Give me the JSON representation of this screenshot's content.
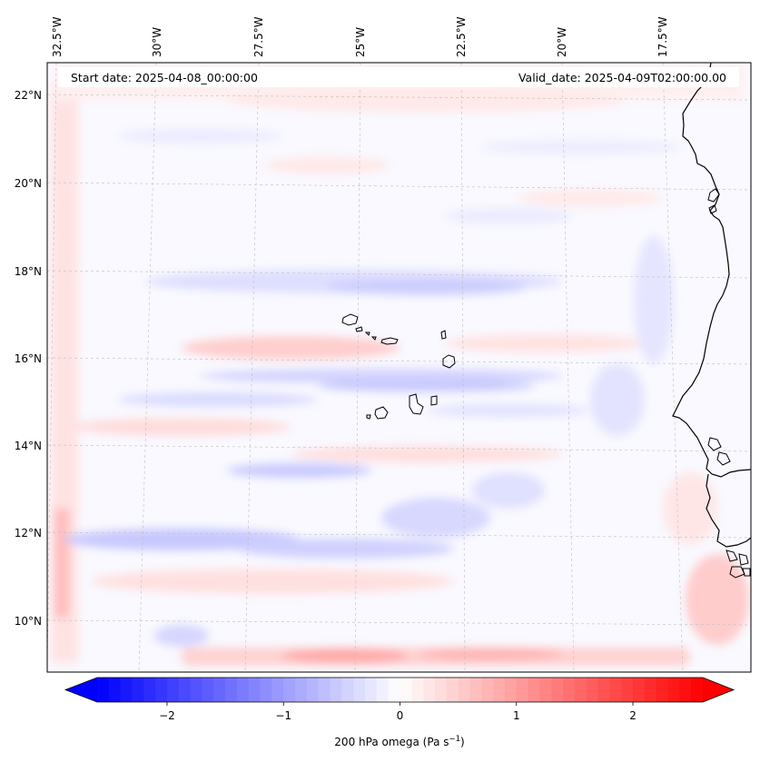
{
  "map": {
    "start_date": "Start date: 2025-04-08_00:00:00",
    "valid_date": "Valid_date: 2025-04-09T02:00:00.00",
    "lon_labels": [
      "32.5°W",
      "30°W",
      "27.5°W",
      "25°W",
      "22.5°W",
      "20°W",
      "17.5°W"
    ],
    "lat_labels": [
      "22°N",
      "20°N",
      "18°N",
      "16°N",
      "14°N",
      "12°N",
      "10°N"
    ],
    "field": "200 hPa omega",
    "region": "Cabo Verde / West African coast, eastern tropical Atlantic"
  },
  "colorbar": {
    "label_prefix": "200 hPa omega (Pa s",
    "label_sup": "−1",
    "label_suffix": ")",
    "ticks": [
      "−2",
      "−1",
      "0",
      "1",
      "2"
    ],
    "range": [
      -2.6,
      2.6
    ],
    "colors": {
      "min": "#0000ff",
      "mid": "#ffffff",
      "max": "#ff0000"
    }
  }
}
